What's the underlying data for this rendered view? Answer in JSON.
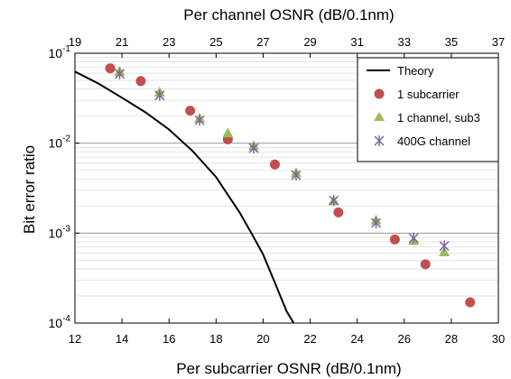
{
  "chart_data": {
    "type": "scatter",
    "xlabel": "Per subcarrier OSNR (dB/0.1nm)",
    "x2label": "Per channel OSNR (dB/0.1nm)",
    "ylabel": "Bit error ratio",
    "xlim": [
      12,
      30
    ],
    "x2lim": [
      19,
      37
    ],
    "ylim": [
      0.0001,
      0.1
    ],
    "yscale": "log",
    "grid": true,
    "legend_position": "top-right",
    "xticks": [
      "12",
      "14",
      "16",
      "18",
      "20",
      "22",
      "24",
      "26",
      "28",
      "30"
    ],
    "x2ticks": [
      "19",
      "21",
      "23",
      "25",
      "27",
      "29",
      "31",
      "33",
      "35",
      "37"
    ],
    "yticks": [
      {
        "base": "10",
        "exp": "-1",
        "value": 0.1
      },
      {
        "base": "10",
        "exp": "-2",
        "value": 0.01
      },
      {
        "base": "10",
        "exp": "-3",
        "value": 0.001
      },
      {
        "base": "10",
        "exp": "-4",
        "value": 0.0001
      }
    ],
    "series": [
      {
        "name": "Theory",
        "style": "line",
        "color": "#000000",
        "points": [
          [
            12,
            0.0625
          ],
          [
            13,
            0.046
          ],
          [
            14,
            0.032
          ],
          [
            15,
            0.022
          ],
          [
            16,
            0.0142
          ],
          [
            17,
            0.0082
          ],
          [
            18,
            0.0042
          ],
          [
            19,
            0.0017
          ],
          [
            19.5,
            0.001
          ],
          [
            20,
            0.00058
          ],
          [
            20.5,
            0.00028
          ],
          [
            21,
            0.000135
          ],
          [
            21.3,
            0.0001
          ]
        ]
      },
      {
        "name": "1 subcarrier",
        "style": "circle",
        "color": "#c0504d",
        "points": [
          [
            13.5,
            0.068
          ],
          [
            14.8,
            0.049
          ],
          [
            16.9,
            0.023
          ],
          [
            18.5,
            0.011
          ],
          [
            20.5,
            0.0058
          ],
          [
            23.2,
            0.0017
          ],
          [
            25.6,
            0.00085
          ],
          [
            26.9,
            0.00045
          ],
          [
            28.8,
            0.00017
          ]
        ]
      },
      {
        "name": "1 channel, sub3",
        "style": "triangle",
        "color": "#9bbb59",
        "points": [
          [
            13.9,
            0.063
          ],
          [
            15.6,
            0.037
          ],
          [
            17.3,
            0.019
          ],
          [
            18.5,
            0.013
          ],
          [
            19.6,
            0.0094
          ],
          [
            21.4,
            0.0047
          ],
          [
            23.0,
            0.0023
          ],
          [
            24.8,
            0.0014
          ],
          [
            26.4,
            0.00083
          ],
          [
            27.7,
            0.00062
          ]
        ]
      },
      {
        "name": "400G channel",
        "style": "star",
        "color": "#8064a2",
        "points": [
          [
            13.9,
            0.059
          ],
          [
            15.6,
            0.034
          ],
          [
            17.3,
            0.018
          ],
          [
            19.6,
            0.0088
          ],
          [
            21.4,
            0.0044
          ],
          [
            23.0,
            0.0023
          ],
          [
            24.8,
            0.0013
          ],
          [
            26.4,
            0.00088
          ],
          [
            27.7,
            0.00072
          ]
        ]
      }
    ]
  }
}
